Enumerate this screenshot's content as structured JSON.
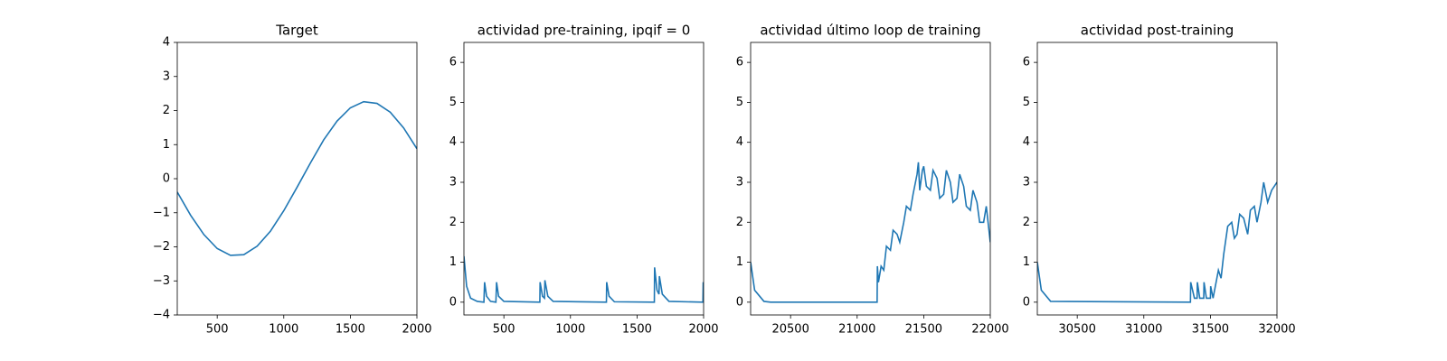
{
  "chart_data": [
    {
      "type": "line",
      "title": "Target",
      "color": "#1f77b4",
      "x": [
        200,
        300,
        400,
        500,
        600,
        700,
        800,
        900,
        1000,
        1100,
        1200,
        1300,
        1400,
        1500,
        1600,
        1700,
        1800,
        1900,
        2000
      ],
      "values": [
        -0.39,
        -1.07,
        -1.64,
        -2.05,
        -2.25,
        -2.23,
        -1.98,
        -1.54,
        -0.94,
        -0.25,
        0.46,
        1.14,
        1.69,
        2.08,
        2.26,
        2.21,
        1.95,
        1.49,
        0.88
      ],
      "xlim": [
        200,
        2000
      ],
      "xticks": [
        500,
        1000,
        1500,
        2000
      ],
      "ylim": [
        -4,
        4
      ],
      "yticks": [
        {
          "value": -4,
          "label": "−4"
        },
        {
          "value": -3,
          "label": "−3"
        },
        {
          "value": -2,
          "label": "−2"
        },
        {
          "value": -1,
          "label": "−1"
        },
        0,
        1,
        2,
        3,
        4
      ]
    },
    {
      "type": "line",
      "title": "actividad pre-training, ipqif = 0",
      "color": "#1f77b4",
      "x": [
        200,
        220,
        250,
        300,
        350,
        355,
        370,
        400,
        440,
        445,
        460,
        500,
        770,
        772,
        790,
        805,
        808,
        830,
        870,
        1270,
        1272,
        1290,
        1330,
        1630,
        1632,
        1650,
        1665,
        1668,
        1690,
        1740,
        1995,
        1997,
        2000
      ],
      "values": [
        1.15,
        0.4,
        0.1,
        0.02,
        0,
        0.5,
        0.15,
        0.02,
        0,
        0.5,
        0.15,
        0.02,
        0,
        0.5,
        0.15,
        0.1,
        0.55,
        0.15,
        0.02,
        0,
        0.5,
        0.15,
        0.01,
        0,
        0.87,
        0.3,
        0.2,
        0.65,
        0.2,
        0.02,
        0,
        0.5,
        0.3
      ],
      "xlim": [
        200,
        2000
      ],
      "xticks": [
        500,
        1000,
        1500,
        2000
      ],
      "ylim": [
        -0.32,
        6.5
      ],
      "yticks": [
        0,
        1,
        2,
        3,
        4,
        5,
        6
      ]
    },
    {
      "type": "line",
      "title": "actividad último loop de training",
      "color": "#1f77b4",
      "x": [
        20200,
        20230,
        20300,
        20350,
        21150,
        21152,
        21160,
        21180,
        21200,
        21220,
        21250,
        21270,
        21300,
        21320,
        21350,
        21370,
        21400,
        21420,
        21450,
        21460,
        21470,
        21490,
        21500,
        21520,
        21550,
        21570,
        21600,
        21620,
        21650,
        21670,
        21700,
        21720,
        21750,
        21770,
        21800,
        21820,
        21850,
        21870,
        21900,
        21920,
        21950,
        21970,
        22000
      ],
      "values": [
        1.0,
        0.3,
        0.02,
        0,
        0,
        0.9,
        0.5,
        0.9,
        0.8,
        1.4,
        1.3,
        1.8,
        1.7,
        1.5,
        2.0,
        2.4,
        2.3,
        2.7,
        3.2,
        3.5,
        2.8,
        3.3,
        3.4,
        2.9,
        2.8,
        3.3,
        3.1,
        2.6,
        2.7,
        3.3,
        3.0,
        2.5,
        2.6,
        3.2,
        2.9,
        2.4,
        2.3,
        2.8,
        2.5,
        2.0,
        2.0,
        2.4,
        1.5
      ],
      "xlim": [
        20200,
        22000
      ],
      "xticks": [
        20500,
        21000,
        21500,
        22000
      ],
      "ylim": [
        -0.32,
        6.5
      ],
      "yticks": [
        0,
        1,
        2,
        3,
        4,
        5,
        6
      ]
    },
    {
      "type": "line",
      "title": "actividad post-training",
      "color": "#1f77b4",
      "x": [
        30200,
        30230,
        30300,
        31350,
        31352,
        31380,
        31400,
        31402,
        31420,
        31450,
        31452,
        31470,
        31500,
        31502,
        31520,
        31560,
        31580,
        31600,
        31630,
        31660,
        31680,
        31700,
        31720,
        31750,
        31780,
        31800,
        31830,
        31850,
        31880,
        31900,
        31930,
        31960,
        32000
      ],
      "values": [
        1.0,
        0.3,
        0.02,
        0,
        0.5,
        0.1,
        0.1,
        0.5,
        0.1,
        0.1,
        0.5,
        0.1,
        0.1,
        0.4,
        0.1,
        0.8,
        0.6,
        1.2,
        1.9,
        2.0,
        1.6,
        1.7,
        2.2,
        2.1,
        1.7,
        2.3,
        2.4,
        2.0,
        2.5,
        3.0,
        2.5,
        2.8,
        3.0
      ],
      "xlim": [
        30200,
        32000
      ],
      "xticks": [
        30500,
        31000,
        31500,
        32000
      ],
      "ylim": [
        -0.32,
        6.5
      ],
      "yticks": [
        0,
        1,
        2,
        3,
        4,
        5,
        6
      ]
    }
  ]
}
